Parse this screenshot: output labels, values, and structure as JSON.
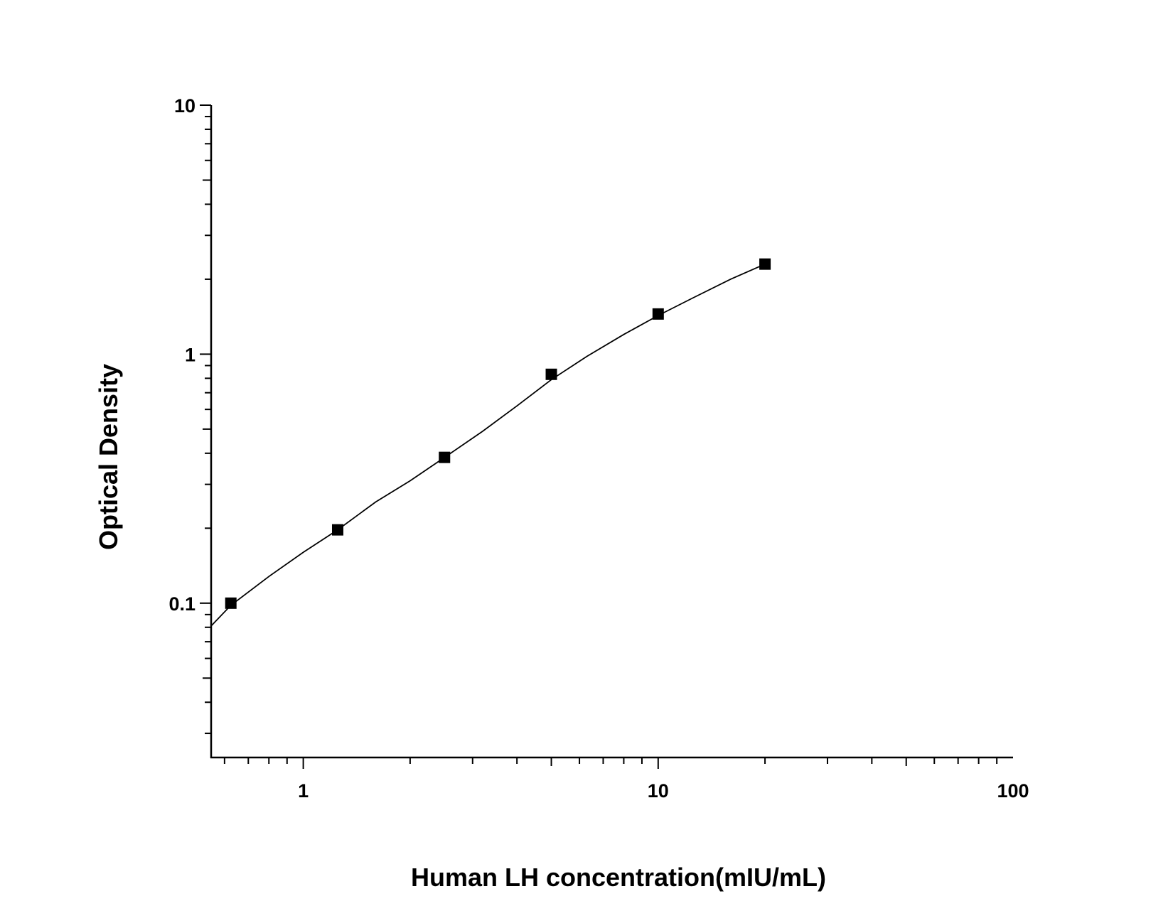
{
  "chart_data": {
    "type": "scatter",
    "xlabel": "Human LH concentration(mIU/mL)",
    "ylabel": "Optical Density",
    "x_scale": "log",
    "y_scale": "log",
    "xlim": [
      0.55,
      100
    ],
    "ylim": [
      0.024,
      10
    ],
    "x_major_ticks": [
      1,
      10,
      100
    ],
    "x_tick_labels": [
      "1",
      "10",
      "100"
    ],
    "y_major_ticks": [
      0.1,
      1,
      10
    ],
    "y_tick_labels": [
      "0.1",
      "1",
      "10"
    ],
    "grid": false,
    "legend": "none",
    "series": [
      {
        "marker": "square",
        "color": "#000000",
        "x": [
          0.625,
          1.25,
          2.5,
          5,
          10,
          20
        ],
        "y": [
          0.1,
          0.197,
          0.385,
          0.83,
          1.45,
          2.3
        ]
      }
    ],
    "fit_curve": {
      "color": "#000000",
      "x": [
        0.55,
        0.625,
        0.8,
        1,
        1.25,
        1.6,
        2,
        2.5,
        3.2,
        4,
        5,
        6.3,
        8,
        10,
        12.5,
        16,
        20
      ],
      "y": [
        0.081,
        0.098,
        0.128,
        0.16,
        0.197,
        0.255,
        0.31,
        0.385,
        0.49,
        0.62,
        0.79,
        0.98,
        1.2,
        1.43,
        1.68,
        2.0,
        2.3
      ]
    }
  }
}
